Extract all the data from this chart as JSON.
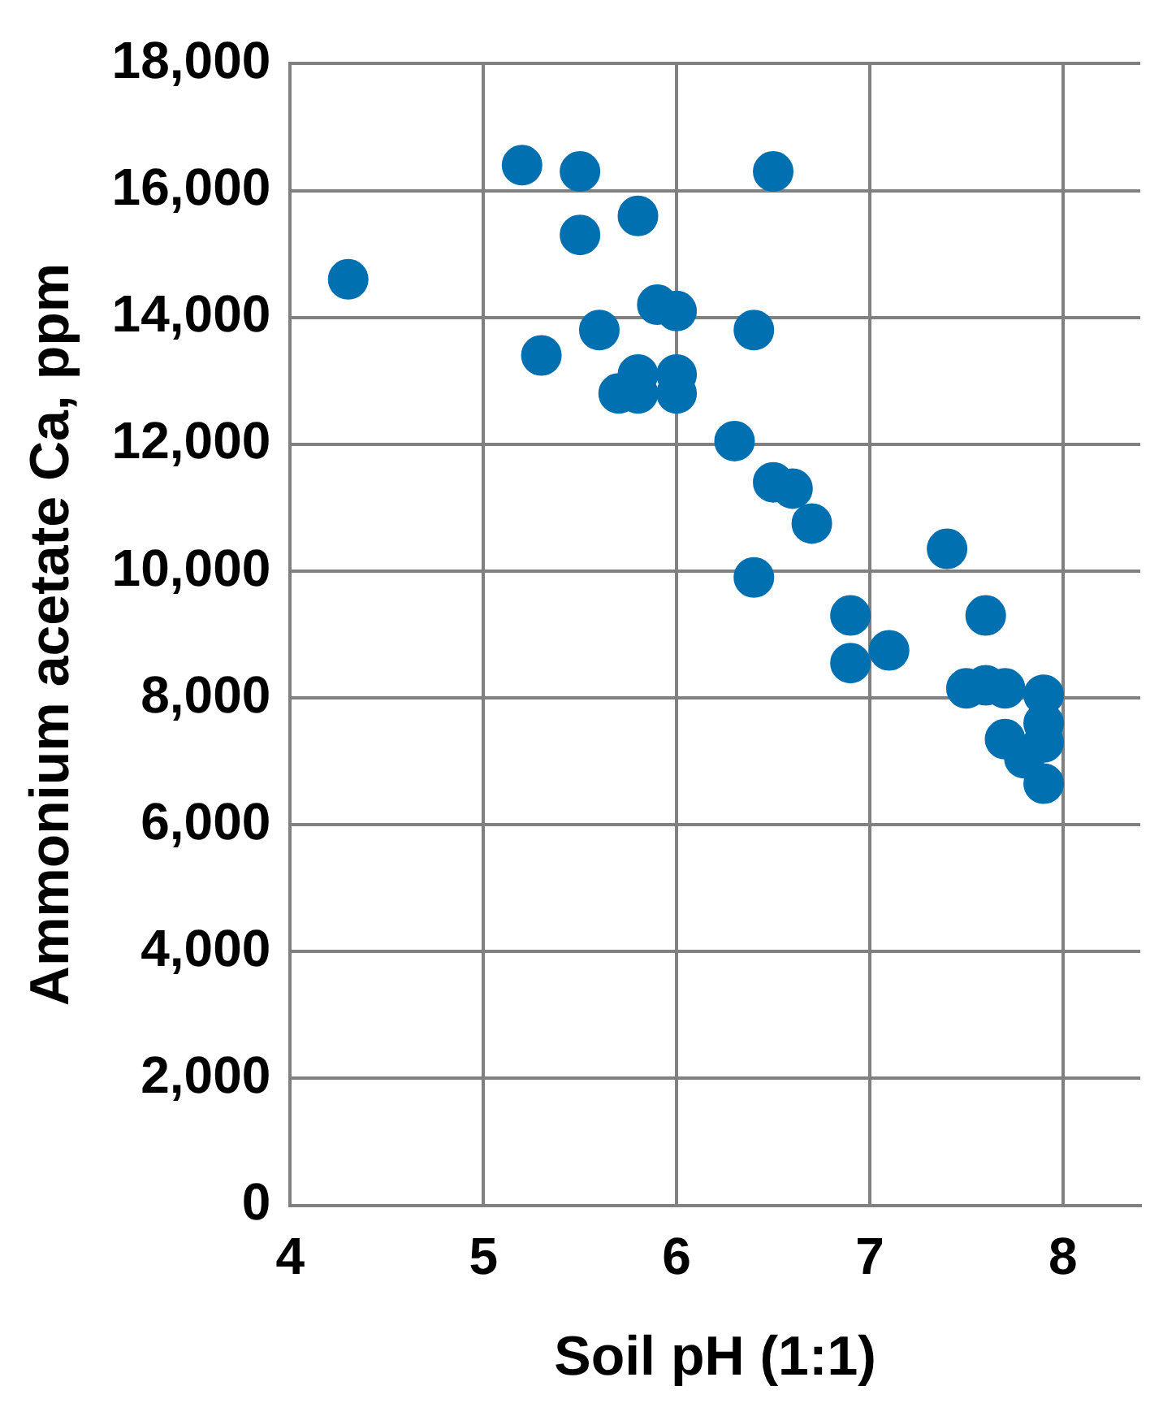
{
  "chart_data": {
    "type": "scatter",
    "xlabel": "Soil pH (1:1)",
    "ylabel": "Ammonium acetate Ca, ppm",
    "xlim": [
      4,
      8.4
    ],
    "xticks": [
      4,
      5,
      6,
      7,
      8
    ],
    "ylim": [
      0,
      18000
    ],
    "yticks": [
      {
        "value": 0,
        "label": "0"
      },
      {
        "value": 2000,
        "label": "2,000"
      },
      {
        "value": 4000,
        "label": "4,000"
      },
      {
        "value": 6000,
        "label": "6,000"
      },
      {
        "value": 8000,
        "label": "8,000"
      },
      {
        "value": 10000,
        "label": "10,000"
      },
      {
        "value": 12000,
        "label": "12,000"
      },
      {
        "value": 14000,
        "label": "14,000"
      },
      {
        "value": 16000,
        "label": "16,000"
      },
      {
        "value": 18000,
        "label": "18,000"
      }
    ],
    "grid": true,
    "marker": "circle",
    "legend": false,
    "series": [
      {
        "color": "#0070b0",
        "x": [
          4.3,
          5.2,
          5.5,
          5.5,
          5.8,
          5.3,
          5.6,
          5.9,
          6.0,
          5.7,
          5.8,
          5.8,
          6.0,
          6.0,
          6.5,
          6.4,
          6.3,
          6.5,
          6.6,
          6.7,
          6.4,
          6.9,
          7.1,
          6.9,
          7.4,
          7.6,
          7.5,
          7.6,
          7.7,
          7.9,
          7.9,
          7.9,
          7.7,
          7.8,
          7.9
        ],
        "values": [
          14600,
          16400,
          16300,
          15300,
          15600,
          13400,
          13800,
          14200,
          14100,
          12800,
          13100,
          12800,
          13100,
          12800,
          16300,
          13800,
          12050,
          11400,
          11300,
          10750,
          9900,
          9300,
          8750,
          8550,
          10350,
          9300,
          8150,
          8200,
          8150,
          8050,
          7600,
          7300,
          7350,
          7050,
          6650
        ]
      }
    ]
  }
}
